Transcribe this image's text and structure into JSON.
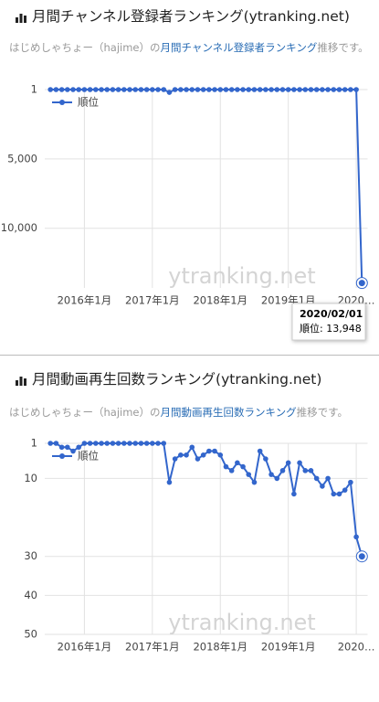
{
  "chart_data": [
    {
      "type": "line",
      "title": "月間チャンネル登録者ランキング(ytranking.net)",
      "subtitle": [
        "はじめしゃちょー（hajime）の",
        "月間チャンネル登録者ランキング",
        "推移です。"
      ],
      "watermark": "ytranking.net",
      "x": [
        "2015-07",
        "2015-08",
        "2015-09",
        "2015-10",
        "2015-11",
        "2015-12",
        "2016-01",
        "2016-02",
        "2016-03",
        "2016-04",
        "2016-05",
        "2016-06",
        "2016-07",
        "2016-08",
        "2016-09",
        "2016-10",
        "2016-11",
        "2016-12",
        "2017-01",
        "2017-02",
        "2017-03",
        "2017-04",
        "2017-05",
        "2017-06",
        "2017-07",
        "2017-08",
        "2017-09",
        "2017-10",
        "2017-11",
        "2017-12",
        "2018-01",
        "2018-02",
        "2018-03",
        "2018-04",
        "2018-05",
        "2018-06",
        "2018-07",
        "2018-08",
        "2018-09",
        "2018-10",
        "2018-11",
        "2018-12",
        "2019-01",
        "2019-02",
        "2019-03",
        "2019-04",
        "2019-05",
        "2019-06",
        "2019-07",
        "2019-08",
        "2019-09",
        "2019-10",
        "2019-11",
        "2019-12",
        "2020-01",
        "2020-02"
      ],
      "series": [
        {
          "name": "順位",
          "color": "#3366cc",
          "values": [
            1,
            1,
            1,
            1,
            1,
            1,
            1,
            1,
            1,
            1,
            1,
            1,
            1,
            1,
            1,
            1,
            1,
            1,
            1,
            1,
            1,
            200,
            1,
            1,
            1,
            1,
            1,
            1,
            1,
            1,
            1,
            1,
            1,
            1,
            1,
            1,
            1,
            1,
            1,
            1,
            1,
            1,
            1,
            1,
            1,
            1,
            1,
            1,
            1,
            1,
            1,
            1,
            1,
            1,
            1,
            13948
          ]
        }
      ],
      "xlim": [
        "2015-06",
        "2020-03"
      ],
      "xticks": [
        {
          "value": "2016-01",
          "label": "2016年1月"
        },
        {
          "value": "2017-01",
          "label": "2017年1月"
        },
        {
          "value": "2018-01",
          "label": "2018年1月"
        },
        {
          "value": "2019-01",
          "label": "2019年1月"
        },
        {
          "value": "2020-01",
          "label": "2020…"
        }
      ],
      "ylim": [
        1,
        14300
      ],
      "yticks": [
        1,
        {
          "value": 5000,
          "label": "5,000"
        },
        {
          "value": 10000,
          "label": "10,000"
        }
      ],
      "y_reversed": true,
      "grid": true,
      "legend": "top-left",
      "tooltip": {
        "title": "2020/02/01",
        "text": "順位: 13,948"
      }
    },
    {
      "type": "line",
      "title": "月間動画再生回数ランキング(ytranking.net)",
      "subtitle": [
        "はじめしゃちょー（hajime）の",
        "月間動画再生回数ランキング",
        "推移です。"
      ],
      "watermark": "ytranking.net",
      "x": [
        "2015-07",
        "2015-08",
        "2015-09",
        "2015-10",
        "2015-11",
        "2015-12",
        "2016-01",
        "2016-02",
        "2016-03",
        "2016-04",
        "2016-05",
        "2016-06",
        "2016-07",
        "2016-08",
        "2016-09",
        "2016-10",
        "2016-11",
        "2016-12",
        "2017-01",
        "2017-02",
        "2017-03",
        "2017-04",
        "2017-05",
        "2017-06",
        "2017-07",
        "2017-08",
        "2017-09",
        "2017-10",
        "2017-11",
        "2017-12",
        "2018-01",
        "2018-02",
        "2018-03",
        "2018-04",
        "2018-05",
        "2018-06",
        "2018-07",
        "2018-08",
        "2018-09",
        "2018-10",
        "2018-11",
        "2018-12",
        "2019-01",
        "2019-02",
        "2019-03",
        "2019-04",
        "2019-05",
        "2019-06",
        "2019-07",
        "2019-08",
        "2019-09",
        "2019-10",
        "2019-11",
        "2019-12",
        "2020-01",
        "2020-02"
      ],
      "series": [
        {
          "name": "順位",
          "color": "#3366cc",
          "values": [
            1,
            1,
            2,
            2,
            3,
            2,
            1,
            1,
            1,
            1,
            1,
            1,
            1,
            1,
            1,
            1,
            1,
            1,
            1,
            1,
            1,
            11,
            5,
            4,
            4,
            2,
            5,
            4,
            3,
            3,
            4,
            7,
            8,
            6,
            7,
            9,
            11,
            3,
            5,
            9,
            10,
            8,
            6,
            14,
            6,
            8,
            8,
            10,
            12,
            10,
            14,
            14,
            13,
            11,
            25,
            30
          ]
        }
      ],
      "xlim": [
        "2015-06",
        "2020-03"
      ],
      "xticks": [
        {
          "value": "2016-01",
          "label": "2016年1月"
        },
        {
          "value": "2017-01",
          "label": "2017年1月"
        },
        {
          "value": "2018-01",
          "label": "2018年1月"
        },
        {
          "value": "2019-01",
          "label": "2019年1月"
        },
        {
          "value": "2020-01",
          "label": "2020…"
        }
      ],
      "ylim": [
        1,
        50
      ],
      "yticks": [
        1,
        10,
        30,
        40,
        50
      ],
      "y_reversed": true,
      "grid": true,
      "legend": "top-left"
    }
  ]
}
